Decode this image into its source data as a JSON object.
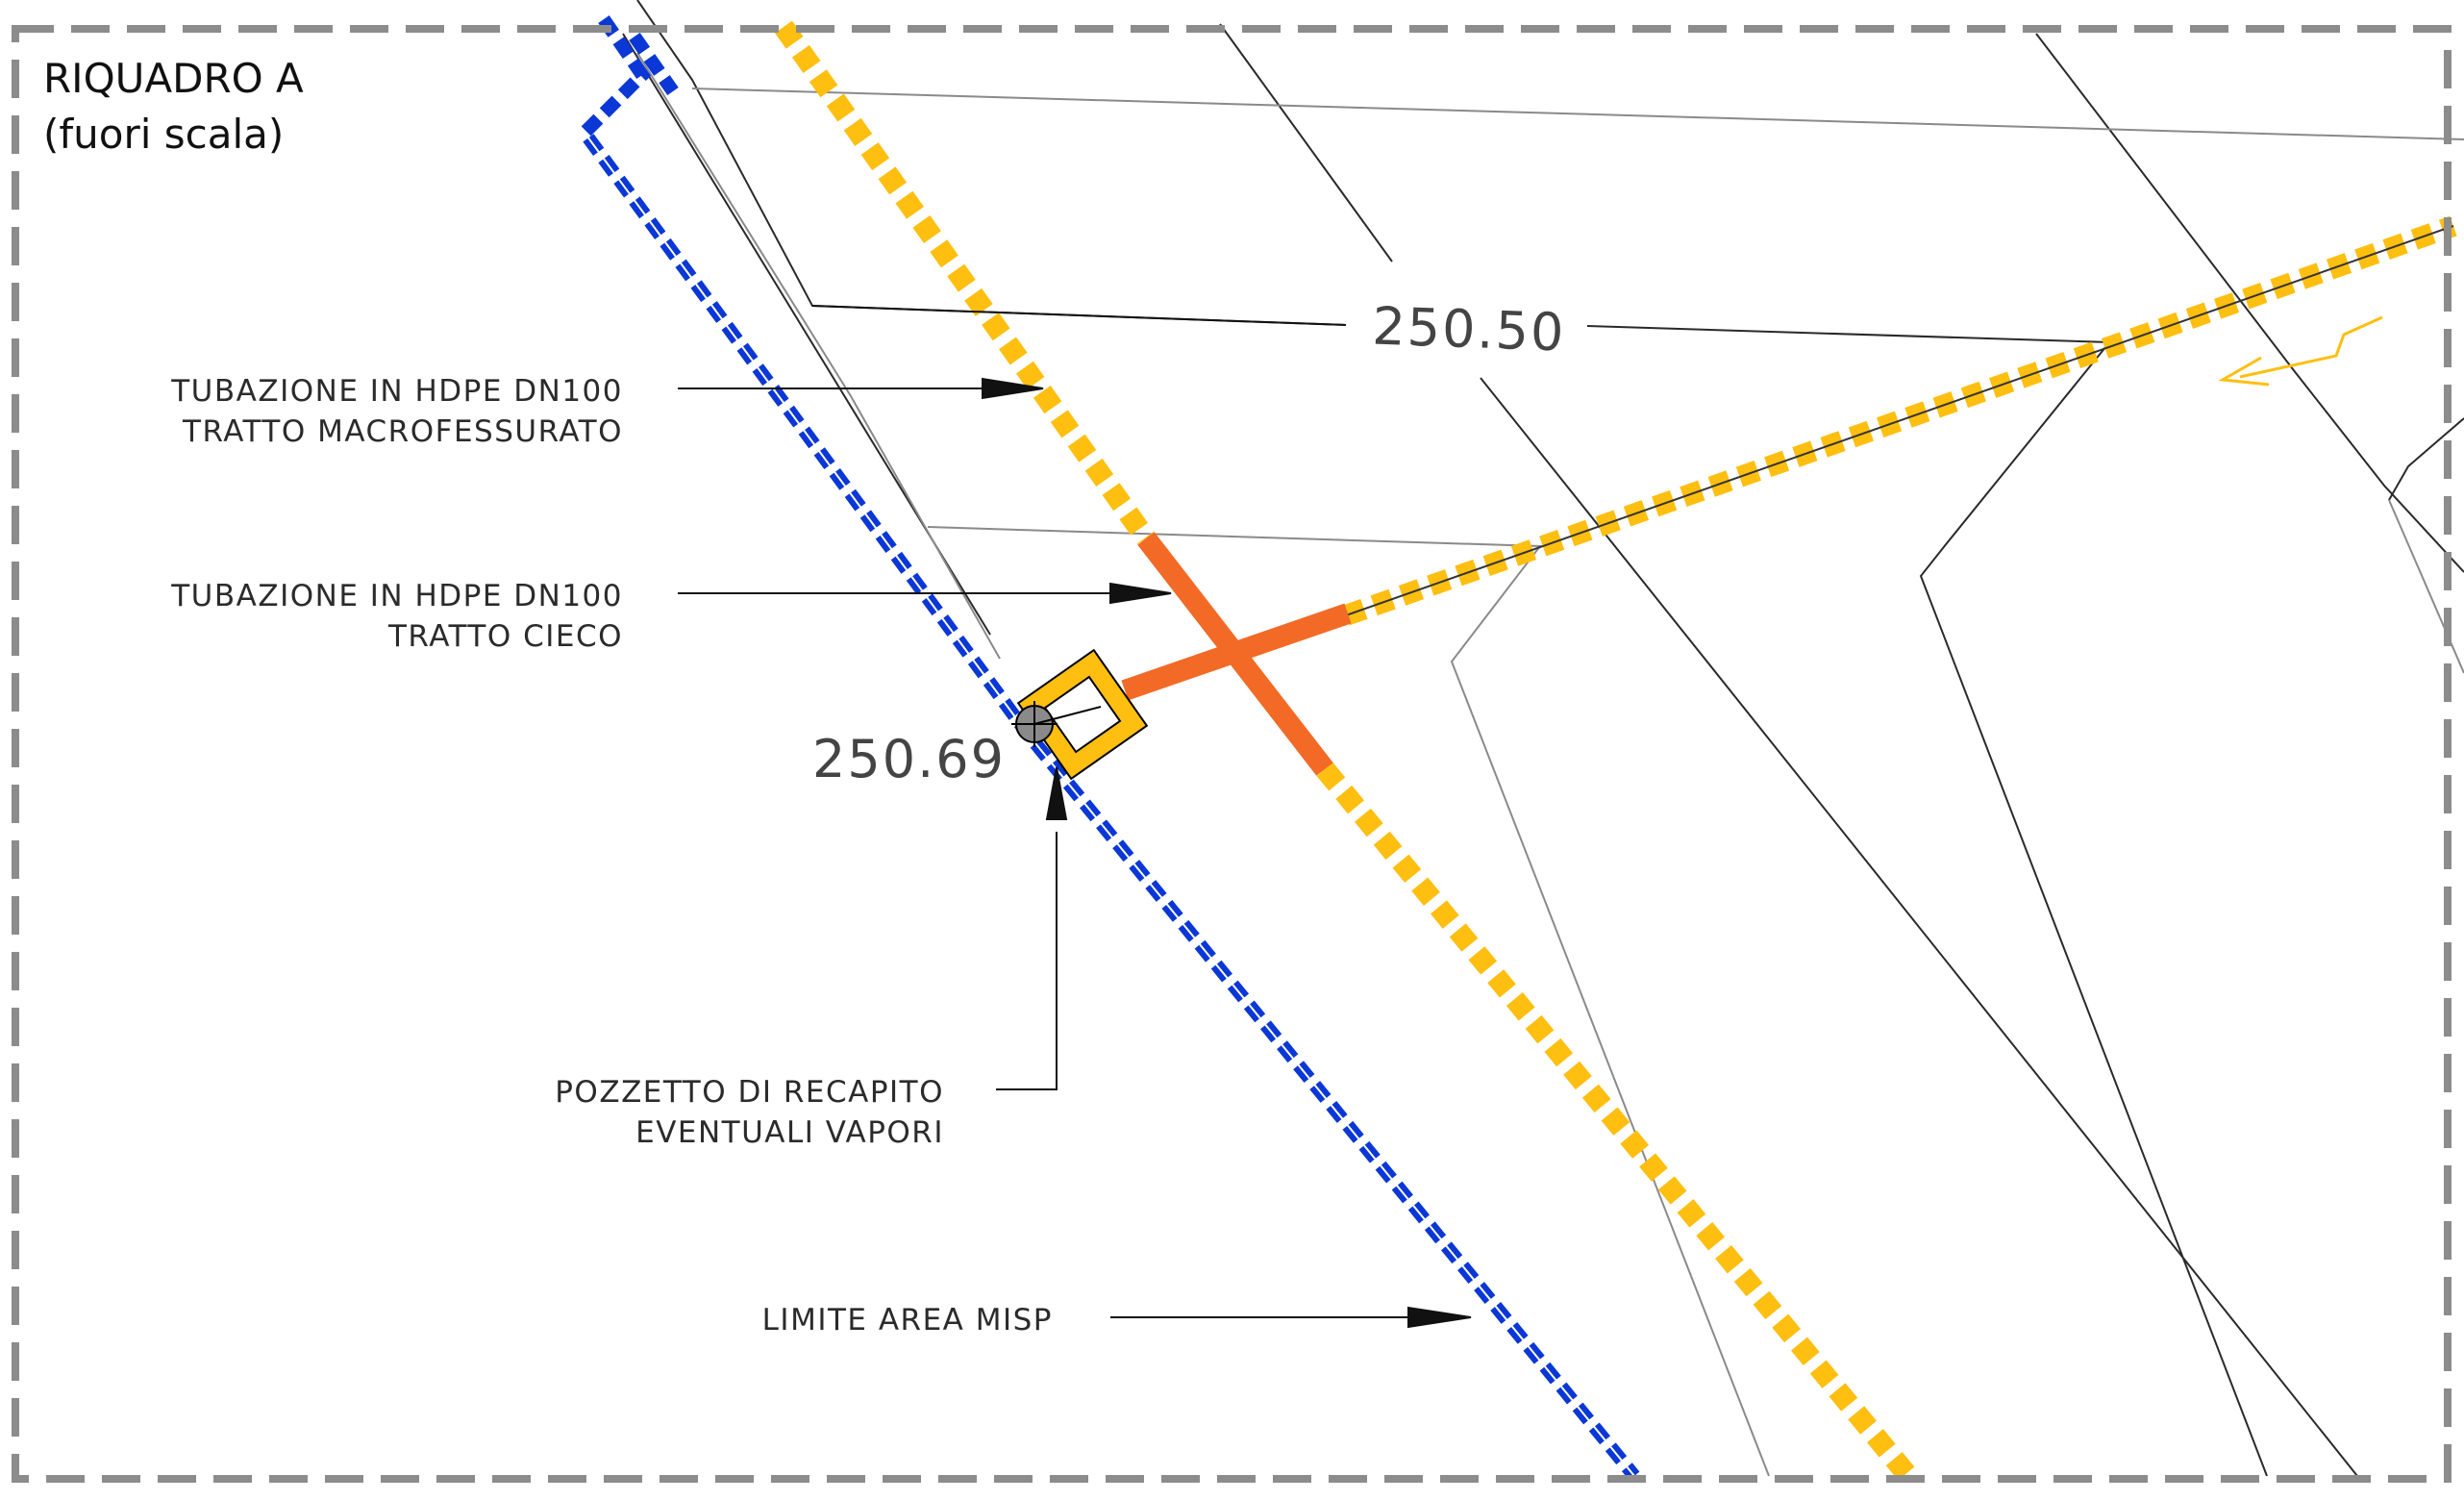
{
  "frame": {
    "title_line1": "RIQUADRO A",
    "title_line2": "(fuori scala)"
  },
  "labels": {
    "pipe_perforated_line1": "TUBAZIONE IN HDPE DN100",
    "pipe_perforated_line2": "TRATTO MACROFESSURATO",
    "pipe_blind_line1": "TUBAZIONE IN HDPE DN100",
    "pipe_blind_line2": "TRATTO CIECO",
    "manhole_line1": "POZZETTO DI RECAPITO",
    "manhole_line2": "EVENTUALI VAPORI",
    "boundary": "LIMITE AREA MISP"
  },
  "elevations": {
    "contour_label": "250.50",
    "manhole_elevation": "250.69"
  },
  "colors": {
    "frame_dash": "#8c8c8c",
    "boundary_blue": "#0a37d6",
    "pipe_perforated_yellow": "#ffbf10",
    "pipe_blind_orange": "#f26a26",
    "manhole_fill": "#ffbf10",
    "linework": "#2a2a2a"
  },
  "icons": {
    "flow_arrow": "lightning-arrow-icon",
    "point_marker": "crosshair-point-icon"
  }
}
